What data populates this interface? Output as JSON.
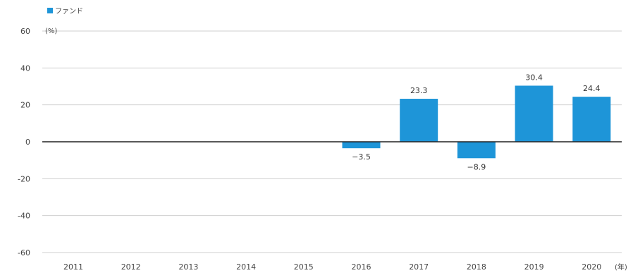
{
  "chart_data": {
    "type": "bar",
    "title": "",
    "xlabel": "",
    "ylabel": "",
    "y_unit": "(%)",
    "x_unit": "(年)",
    "categories": [
      "2011",
      "2012",
      "2013",
      "2014",
      "2015",
      "2016",
      "2017",
      "2018",
      "2019",
      "2020"
    ],
    "series": [
      {
        "name": "ファンド",
        "values": [
          null,
          null,
          null,
          null,
          null,
          -3.5,
          23.3,
          -8.9,
          30.4,
          24.4
        ],
        "labels": [
          "",
          "",
          "",
          "",
          "",
          "−3.5",
          "23.3",
          "−8.9",
          "30.4",
          "24.4"
        ],
        "color": "#1e95d8"
      }
    ],
    "yticks": [
      60,
      40,
      20,
      0,
      -20,
      -40,
      -60
    ],
    "ylim": [
      -60,
      60
    ],
    "grid": true,
    "legend_position": "top-left"
  }
}
